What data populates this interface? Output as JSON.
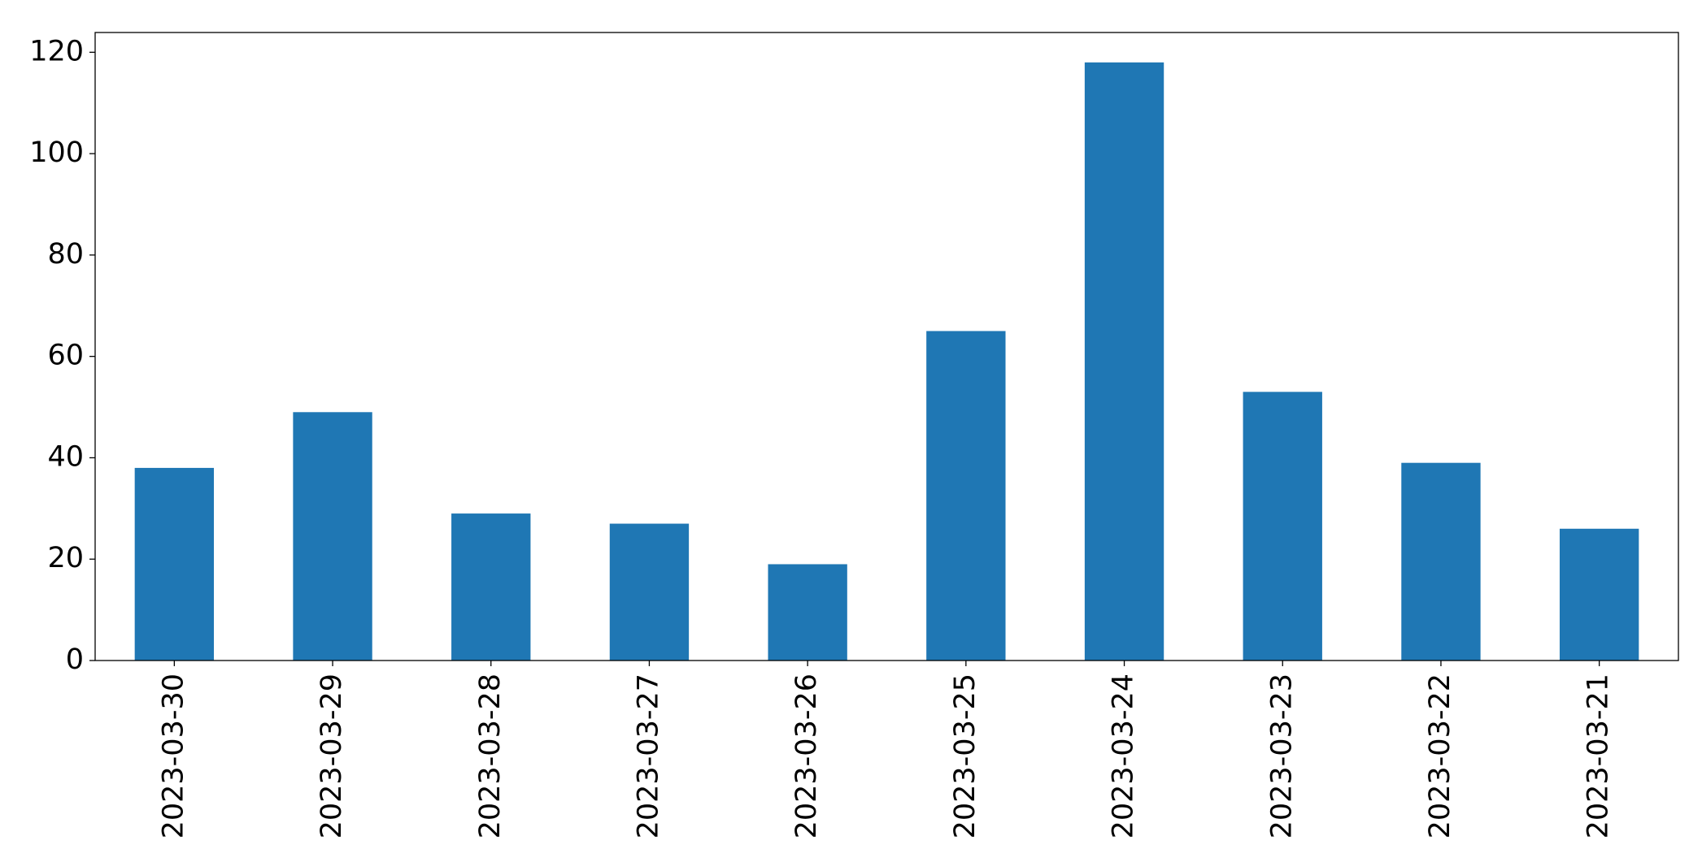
{
  "chart_data": {
    "type": "bar",
    "categories": [
      "2023-03-30",
      "2023-03-29",
      "2023-03-28",
      "2023-03-27",
      "2023-03-26",
      "2023-03-25",
      "2023-03-24",
      "2023-03-23",
      "2023-03-22",
      "2023-03-21"
    ],
    "values": [
      38,
      49,
      29,
      27,
      19,
      65,
      118,
      53,
      39,
      26
    ],
    "color": "#1f77b4",
    "ylim": [
      0,
      123.9
    ],
    "yticks": [
      0,
      20,
      40,
      60,
      80,
      100,
      120
    ],
    "grid": false
  }
}
